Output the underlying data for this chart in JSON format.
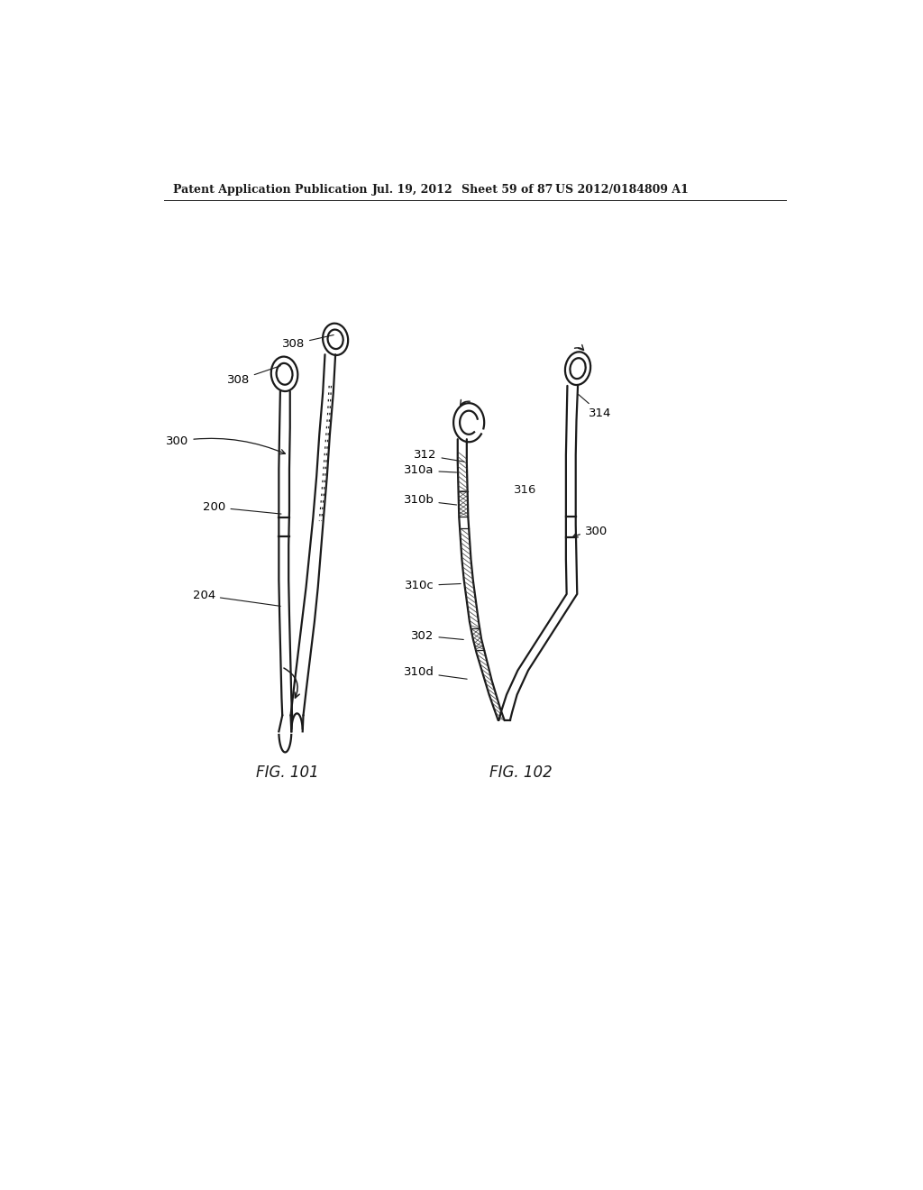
{
  "background_color": "#ffffff",
  "header_text": "Patent Application Publication",
  "header_date": "Jul. 19, 2012",
  "header_sheet": "Sheet 59 of 87",
  "header_patent": "US 2012/0184809 A1",
  "fig101_label": "FIG. 101",
  "fig102_label": "FIG. 102",
  "color_dark": "#1a1a1a",
  "lw_main": 1.6
}
